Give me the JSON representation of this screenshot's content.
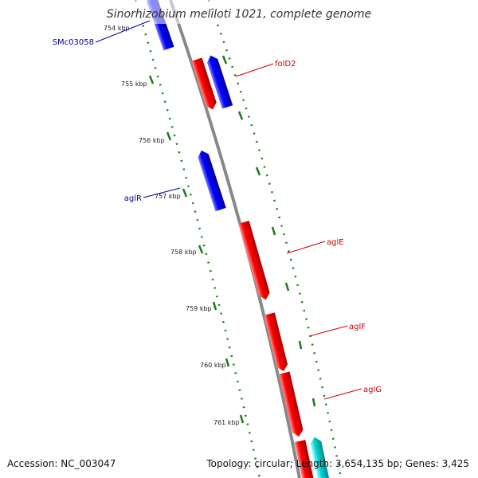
{
  "map": {
    "title": "Sinorhizobium meliloti 1021, complete genome",
    "accession_text": "Accession: NC_003047",
    "summary_text": "Topology: circular; Length: 3,654,135 bp; Genes: 3,425"
  },
  "colors": {
    "backbone": "#888888",
    "tick": "#1e7a1e",
    "forward_gene": "#ff0000",
    "reverse_gene": "#0000ff",
    "other_gene": "#00cccc",
    "forward_label": "#cc0000",
    "reverse_label": "#000099"
  },
  "ticks": [
    "754 kbp",
    "755 kbp",
    "756 kbp",
    "757 kbp",
    "758 kbp",
    "759 kbp",
    "760 kbp",
    "761 kbp"
  ],
  "genes": [
    {
      "label": "SMc03058",
      "strand": "reverse"
    },
    {
      "label": "folD2",
      "strand": "forward"
    },
    {
      "label": "aglR",
      "strand": "reverse"
    },
    {
      "label": "aglE",
      "strand": "forward"
    },
    {
      "label": "aglF",
      "strand": "forward"
    },
    {
      "label": "aglG",
      "strand": "forward"
    }
  ]
}
